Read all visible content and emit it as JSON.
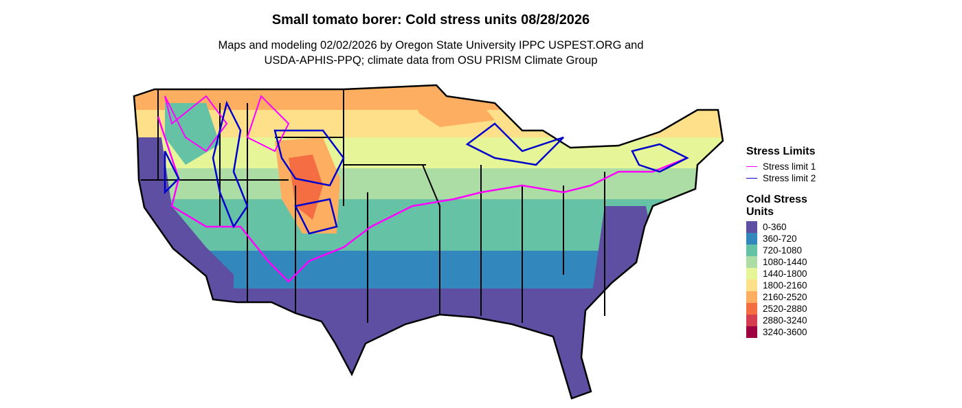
{
  "header": {
    "title": "Small tomato borer: Cold stress units 08/28/2026",
    "subtitle_lines": [
      "Maps and modeling 02/02/2026 by Oregon State University IPPC USPEST.ORG and",
      "USDA-APHIS-PPQ; climate data from OSU PRISM Climate Group"
    ]
  },
  "legend": {
    "stress_limits": {
      "title": "Stress Limits",
      "items": [
        {
          "label": "Stress limit 1",
          "color": "#ff00ff"
        },
        {
          "label": "Stress limit 2",
          "color": "#0000cc"
        }
      ]
    },
    "cold_stress": {
      "title": "Cold Stress Units",
      "items": [
        {
          "label": "0-360",
          "color": "#5e4fa2"
        },
        {
          "label": "360-720",
          "color": "#3288bd"
        },
        {
          "label": "720-1080",
          "color": "#66c2a5"
        },
        {
          "label": "1080-1440",
          "color": "#abdda4"
        },
        {
          "label": "1440-1800",
          "color": "#e6f598"
        },
        {
          "label": "1800-2160",
          "color": "#fee08b"
        },
        {
          "label": "2160-2520",
          "color": "#fdae61"
        },
        {
          "label": "2520-2880",
          "color": "#f46d43"
        },
        {
          "label": "2880-3240",
          "color": "#d53e4f"
        },
        {
          "label": "3240-3600",
          "color": "#9e0142"
        }
      ]
    }
  }
}
